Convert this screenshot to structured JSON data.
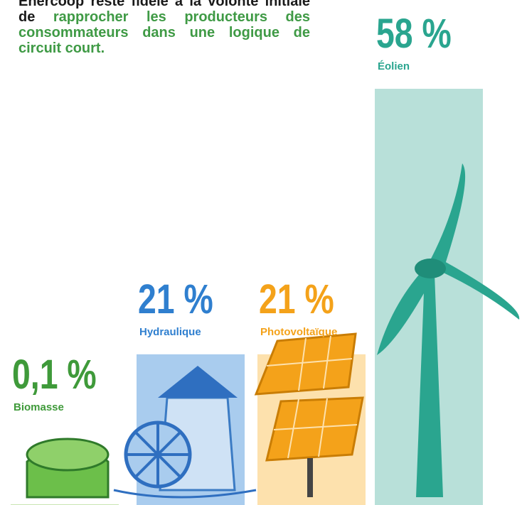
{
  "chart_data": {
    "type": "bar",
    "intro": "Enercoop reste fidèle à la volonté initiale de",
    "intro_highlight": "rapprocher les producteurs des consommateurs dans une logique de circuit court.",
    "categories": [
      "Biomasse",
      "Hydraulique",
      "Photovoltaïque",
      "Éolien"
    ],
    "values": [
      0.1,
      21,
      21,
      58
    ],
    "value_labels": [
      "0,1 %",
      "21 %",
      "21 %",
      "58 %"
    ],
    "colors": [
      "#3f9a3a",
      "#2f7fcf",
      "#f4a21a",
      "#2aa58f"
    ],
    "bar_colors": [
      "#c9e6b3",
      "#a9ccee",
      "#fde1ad",
      "#b8e0d9"
    ]
  }
}
